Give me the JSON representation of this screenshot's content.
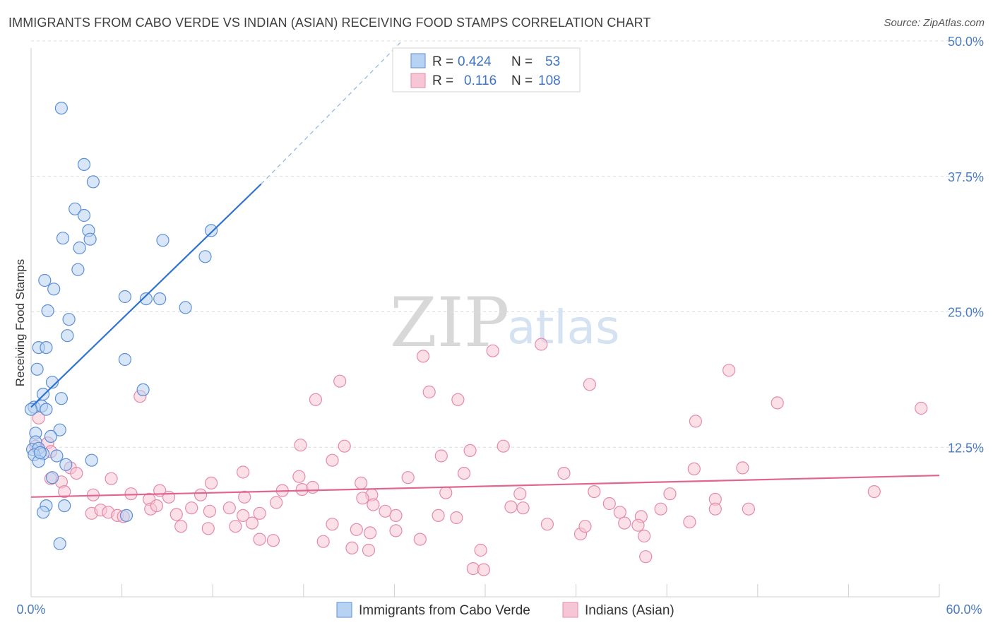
{
  "title": "IMMIGRANTS FROM CABO VERDE VS INDIAN (ASIAN) RECEIVING FOOD STAMPS CORRELATION CHART",
  "source": "Source: ZipAtlas.com",
  "colors": {
    "blue_fill": "#b8d2f3",
    "blue_stroke": "#5b8fd6",
    "blue_line": "#2f73d0",
    "pink_fill": "#f7c6d6",
    "pink_stroke": "#e58aab",
    "pink_line": "#e0668f",
    "tick_text": "#4a7cc4",
    "grid": "#dcdcdc"
  },
  "legend": {
    "r_label": "R =",
    "n_label": "N =",
    "blue": {
      "r": "0.424",
      "n": "53"
    },
    "pink": {
      "r": "0.116",
      "n": "108"
    }
  },
  "watermark": {
    "zip": "ZIP",
    "atlas": "atlas"
  },
  "chart_data": {
    "type": "scatter",
    "title": "IMMIGRANTS FROM CABO VERDE VS INDIAN (ASIAN) RECEIVING FOOD STAMPS CORRELATION CHART",
    "xlabel": "",
    "ylabel": "Receiving Food Stamps",
    "xlim": [
      0,
      60
    ],
    "ylim": [
      0,
      50
    ],
    "x_tick_labels": [
      "0.0%",
      "60.0%"
    ],
    "y_ticks": [
      12.5,
      25.0,
      37.5,
      50.0
    ],
    "y_tick_labels": [
      "12.5%",
      "25.0%",
      "37.5%",
      "50.0%"
    ],
    "series": [
      {
        "name": "Immigrants from Cabo Verde",
        "color": "#5b8fd6",
        "R": 0.424,
        "N": 53,
        "trendline": {
          "x": [
            0,
            15.2
          ],
          "y": [
            16.2,
            36.8
          ],
          "extend_to": [
            24.5,
            50.0
          ]
        },
        "points": [
          [
            2.0,
            43.8
          ],
          [
            3.5,
            38.6
          ],
          [
            4.1,
            37.0
          ],
          [
            2.9,
            34.5
          ],
          [
            3.5,
            33.9
          ],
          [
            3.8,
            32.5
          ],
          [
            2.1,
            31.8
          ],
          [
            3.2,
            30.9
          ],
          [
            3.9,
            31.7
          ],
          [
            8.7,
            31.6
          ],
          [
            11.9,
            32.5
          ],
          [
            11.5,
            30.1
          ],
          [
            3.1,
            28.9
          ],
          [
            0.9,
            27.9
          ],
          [
            1.5,
            27.1
          ],
          [
            6.2,
            26.4
          ],
          [
            7.6,
            26.2
          ],
          [
            8.5,
            26.2
          ],
          [
            10.2,
            25.4
          ],
          [
            1.1,
            25.1
          ],
          [
            2.5,
            24.3
          ],
          [
            2.4,
            22.8
          ],
          [
            0.5,
            21.7
          ],
          [
            1.0,
            21.7
          ],
          [
            6.2,
            20.6
          ],
          [
            0.4,
            19.7
          ],
          [
            1.4,
            18.5
          ],
          [
            7.4,
            17.8
          ],
          [
            0.8,
            17.4
          ],
          [
            2.0,
            17.0
          ],
          [
            0.2,
            16.2
          ],
          [
            0.7,
            16.3
          ],
          [
            0.0,
            16.0
          ],
          [
            1.0,
            16.0
          ],
          [
            1.9,
            14.1
          ],
          [
            0.3,
            13.8
          ],
          [
            1.3,
            13.5
          ],
          [
            0.3,
            13.0
          ],
          [
            0.1,
            12.3
          ],
          [
            0.5,
            12.4
          ],
          [
            0.8,
            11.9
          ],
          [
            0.2,
            11.8
          ],
          [
            1.7,
            11.7
          ],
          [
            0.5,
            11.2
          ],
          [
            2.3,
            10.9
          ],
          [
            4.0,
            11.3
          ],
          [
            1.4,
            9.7
          ],
          [
            1.0,
            7.1
          ],
          [
            2.2,
            7.1
          ],
          [
            0.8,
            6.5
          ],
          [
            6.3,
            6.2
          ],
          [
            1.9,
            3.6
          ],
          [
            0.6,
            12.0
          ]
        ]
      },
      {
        "name": "Indians (Asian)",
        "color": "#e58aab",
        "R": 0.116,
        "N": 108,
        "trendline": {
          "x": [
            0,
            60
          ],
          "y": [
            7.9,
            9.9
          ]
        },
        "points": [
          [
            25.9,
            20.9
          ],
          [
            30.5,
            21.4
          ],
          [
            33.7,
            22.0
          ],
          [
            20.4,
            18.6
          ],
          [
            26.3,
            17.6
          ],
          [
            18.8,
            16.9
          ],
          [
            28.2,
            16.9
          ],
          [
            36.9,
            18.3
          ],
          [
            46.1,
            19.6
          ],
          [
            49.3,
            16.6
          ],
          [
            58.8,
            16.1
          ],
          [
            43.9,
            14.9
          ],
          [
            7.2,
            17.2
          ],
          [
            17.8,
            12.7
          ],
          [
            20.7,
            12.6
          ],
          [
            27.1,
            11.7
          ],
          [
            29.0,
            12.2
          ],
          [
            31.2,
            12.6
          ],
          [
            19.9,
            11.3
          ],
          [
            14.0,
            10.2
          ],
          [
            17.7,
            9.8
          ],
          [
            21.8,
            9.2
          ],
          [
            24.9,
            9.7
          ],
          [
            28.6,
            10.1
          ],
          [
            35.2,
            10.1
          ],
          [
            43.8,
            10.5
          ],
          [
            47.0,
            10.6
          ],
          [
            1.1,
            12.9
          ],
          [
            0.3,
            12.6
          ],
          [
            1.3,
            12.1
          ],
          [
            2.6,
            10.6
          ],
          [
            3.0,
            10.1
          ],
          [
            2.0,
            9.3
          ],
          [
            5.3,
            9.6
          ],
          [
            11.9,
            9.2
          ],
          [
            1.3,
            9.6
          ],
          [
            2.2,
            8.4
          ],
          [
            4.1,
            8.1
          ],
          [
            6.6,
            8.2
          ],
          [
            8.5,
            8.5
          ],
          [
            9.1,
            7.9
          ],
          [
            7.8,
            7.7
          ],
          [
            11.2,
            8.1
          ],
          [
            14.1,
            7.9
          ],
          [
            16.6,
            8.5
          ],
          [
            17.9,
            8.6
          ],
          [
            18.6,
            8.8
          ],
          [
            22.5,
            8.1
          ],
          [
            22.6,
            7.2
          ],
          [
            27.4,
            8.3
          ],
          [
            32.3,
            8.2
          ],
          [
            37.2,
            8.4
          ],
          [
            42.2,
            8.2
          ],
          [
            45.2,
            7.7
          ],
          [
            55.7,
            8.4
          ],
          [
            4.0,
            6.4
          ],
          [
            4.6,
            6.7
          ],
          [
            5.1,
            6.5
          ],
          [
            5.7,
            6.2
          ],
          [
            6.1,
            6.1
          ],
          [
            7.9,
            6.8
          ],
          [
            8.3,
            7.1
          ],
          [
            9.6,
            6.3
          ],
          [
            10.6,
            6.9
          ],
          [
            11.8,
            6.6
          ],
          [
            13.1,
            6.9
          ],
          [
            14.0,
            6.2
          ],
          [
            15.1,
            6.4
          ],
          [
            16.2,
            7.4
          ],
          [
            21.9,
            7.8
          ],
          [
            23.4,
            6.6
          ],
          [
            24.1,
            6.2
          ],
          [
            26.9,
            6.2
          ],
          [
            28.1,
            6.0
          ],
          [
            31.7,
            7.0
          ],
          [
            32.5,
            6.9
          ],
          [
            38.2,
            7.3
          ],
          [
            38.9,
            6.5
          ],
          [
            40.3,
            6.1
          ],
          [
            41.6,
            6.8
          ],
          [
            45.2,
            6.8
          ],
          [
            47.4,
            6.8
          ],
          [
            9.9,
            5.2
          ],
          [
            11.7,
            5.0
          ],
          [
            13.5,
            5.2
          ],
          [
            14.6,
            5.5
          ],
          [
            19.9,
            5.4
          ],
          [
            21.5,
            4.9
          ],
          [
            22.4,
            4.6
          ],
          [
            24.1,
            4.8
          ],
          [
            34.1,
            5.4
          ],
          [
            36.3,
            4.5
          ],
          [
            36.6,
            5.2
          ],
          [
            39.2,
            5.5
          ],
          [
            40.1,
            5.3
          ],
          [
            43.5,
            5.6
          ],
          [
            15.1,
            4.0
          ],
          [
            16.0,
            3.9
          ],
          [
            19.3,
            3.8
          ],
          [
            21.2,
            3.2
          ],
          [
            22.3,
            3.0
          ],
          [
            25.7,
            4.0
          ],
          [
            29.7,
            3.0
          ],
          [
            40.5,
            4.3
          ],
          [
            40.6,
            2.4
          ],
          [
            29.2,
            1.3
          ],
          [
            29.9,
            1.2
          ],
          [
            0.5,
            15.2
          ]
        ]
      }
    ]
  },
  "bottom_legend": {
    "blue": "Immigrants from Cabo Verde",
    "pink": "Indians (Asian)"
  }
}
